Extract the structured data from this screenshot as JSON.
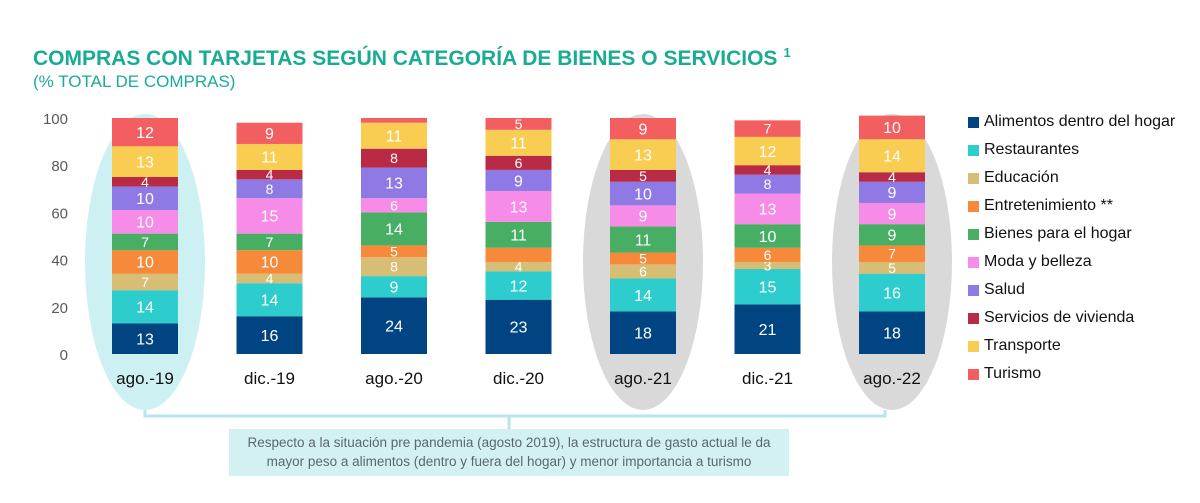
{
  "title": "COMPRAS CON TARJETAS SEGÚN CATEGORÍA DE BIENES O SERVICIOS",
  "title_sup": "1",
  "subtitle": "(% TOTAL DE COMPRAS)",
  "note": "Respecto a la situación pre pandemia (agosto 2019), la estructura de gasto actual le da mayor peso a alimentos (dentro y fuera del hogar) y menor importancia a turismo",
  "colors": {
    "title": "#1bab95",
    "highlight_first": "#cdf0f2",
    "highlight_other": "#d9d9d9",
    "connector": "#b5e6ea",
    "note_bg": "#d4f1f2"
  },
  "chart_data": {
    "type": "bar",
    "stacked": true,
    "title": "COMPRAS CON TARJETAS SEGÚN CATEGORÍA DE BIENES O SERVICIOS",
    "subtitle": "(% TOTAL DE COMPRAS)",
    "categories": [
      "ago.-19",
      "dic.-19",
      "ago.-20",
      "dic.-20",
      "ago.-21",
      "dic.-21",
      "ago.-22"
    ],
    "highlighted": [
      "ago.-19",
      "ago.-21",
      "ago.-22"
    ],
    "ylim": [
      0,
      100
    ],
    "yticks": [
      0,
      20,
      40,
      60,
      80,
      100
    ],
    "legend_position": "right",
    "series": [
      {
        "name": "Alimentos dentro del hogar",
        "color": "#004481",
        "values": [
          13,
          16,
          24,
          23,
          18,
          21,
          18
        ],
        "labels": [
          "13",
          "16",
          "24",
          "23",
          "18",
          "21",
          "18"
        ]
      },
      {
        "name": "Restaurantes",
        "color": "#2dcccd",
        "values": [
          14,
          14,
          9,
          12,
          14,
          15,
          16
        ],
        "labels": [
          "14",
          "14",
          "9",
          "12",
          "14",
          "15",
          "16"
        ]
      },
      {
        "name": "Educación",
        "color": "#d8be75",
        "values": [
          7,
          4,
          8,
          4,
          6,
          3,
          5
        ],
        "labels": [
          "7",
          "4",
          "8",
          "4",
          "6",
          "3",
          "5"
        ]
      },
      {
        "name": "Entretenimiento **",
        "color": "#f7893b",
        "values": [
          10,
          10,
          5,
          6,
          5,
          6,
          7
        ],
        "labels": [
          "10",
          "10",
          "5",
          "",
          "5",
          "6",
          "7"
        ]
      },
      {
        "name": "Bienes para el hogar",
        "color": "#48ae64",
        "values": [
          7,
          7,
          14,
          11,
          11,
          10,
          9
        ],
        "labels": [
          "7",
          "7",
          "14",
          "11",
          "11",
          "10",
          "9"
        ]
      },
      {
        "name": "Moda y belleza",
        "color": "#f78be8",
        "values": [
          10,
          15,
          6,
          13,
          9,
          13,
          9
        ],
        "labels": [
          "10",
          "15",
          "6",
          "13",
          "9",
          "13",
          "9"
        ]
      },
      {
        "name": "Salud",
        "color": "#8f7ae5",
        "values": [
          10,
          8,
          13,
          9,
          10,
          8,
          9
        ],
        "labels": [
          "10",
          "8",
          "13",
          "9",
          "10",
          "8",
          "9"
        ]
      },
      {
        "name": "Servicios de vivienda",
        "color": "#b92a45",
        "values": [
          4,
          4,
          8,
          6,
          5,
          4,
          4
        ],
        "labels": [
          "4",
          "4",
          "8",
          "6",
          "5",
          "4",
          "4"
        ]
      },
      {
        "name": "Transporte",
        "color": "#f8cd51",
        "values": [
          13,
          11,
          11,
          11,
          13,
          12,
          14
        ],
        "labels": [
          "13",
          "11",
          "11",
          "11",
          "13",
          "12",
          "14"
        ]
      },
      {
        "name": "Turismo",
        "color": "#f35e61",
        "values": [
          12,
          9,
          2,
          5,
          9,
          7,
          10
        ],
        "labels": [
          "12",
          "9",
          "",
          "5",
          "9",
          "7",
          "10"
        ]
      }
    ]
  }
}
